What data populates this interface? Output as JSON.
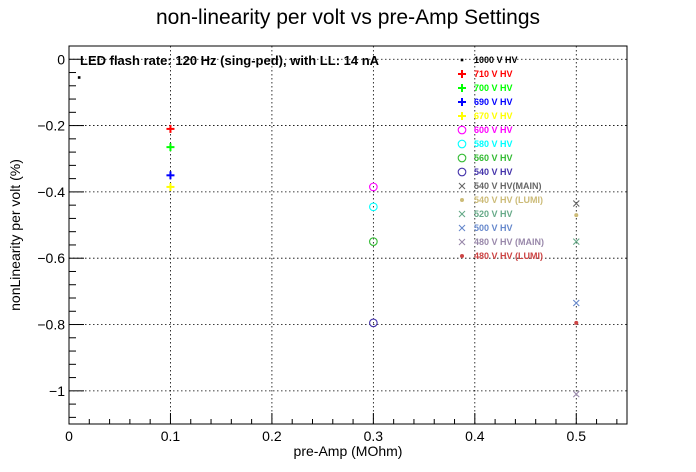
{
  "chart_data": {
    "type": "scatter",
    "title": "non-linearity per volt vs pre-Amp Settings",
    "xlabel": "pre-Amp (MOhm)",
    "ylabel": "nonLinearity per volt (%)",
    "xlim": [
      0,
      0.55
    ],
    "ylim": [
      -1.1,
      0.04
    ],
    "grid": true,
    "legend_position": "top-right",
    "annotation": "LED flash rate: 120 Hz  (sing-ped), with LL: 14 nA",
    "x_ticks": [
      {
        "value": 0,
        "label": "0"
      },
      {
        "value": 0.1,
        "label": "0.1"
      },
      {
        "value": 0.2,
        "label": "0.2"
      },
      {
        "value": 0.3,
        "label": "0.3"
      },
      {
        "value": 0.4,
        "label": "0.4"
      },
      {
        "value": 0.5,
        "label": "0.5"
      }
    ],
    "y_ticks": [
      {
        "value": 0,
        "label": "0"
      },
      {
        "value": -0.2,
        "label": "−0.2"
      },
      {
        "value": -0.4,
        "label": "−0.4"
      },
      {
        "value": -0.6,
        "label": "−0.6"
      },
      {
        "value": -0.8,
        "label": "−0.8"
      },
      {
        "value": -1,
        "label": "−1"
      }
    ],
    "series": [
      {
        "name": "1000 V HV",
        "color": "#000000",
        "marker": "dot",
        "points": [
          [
            0.01,
            -0.055
          ]
        ]
      },
      {
        "name": "710 V HV",
        "color": "#ff0000",
        "marker": "plus",
        "points": [
          [
            0.1,
            -0.21
          ]
        ]
      },
      {
        "name": "700 V HV",
        "color": "#00ff00",
        "marker": "plus",
        "points": [
          [
            0.1,
            -0.265
          ]
        ]
      },
      {
        "name": "690 V HV",
        "color": "#0000ff",
        "marker": "plus",
        "points": [
          [
            0.1,
            -0.35
          ]
        ]
      },
      {
        "name": "670 V HV",
        "color": "#ffff00",
        "marker": "plus",
        "points": [
          [
            0.1,
            -0.385
          ]
        ]
      },
      {
        "name": "600 V HV",
        "color": "#ff00ff",
        "marker": "circle",
        "points": [
          [
            0.3,
            -0.385
          ]
        ]
      },
      {
        "name": "580 V HV",
        "color": "#00ffff",
        "marker": "circle",
        "points": [
          [
            0.3,
            -0.445
          ]
        ]
      },
      {
        "name": "560 V HV",
        "color": "#33bb33",
        "marker": "circle",
        "points": [
          [
            0.3,
            -0.55
          ]
        ]
      },
      {
        "name": "540 V HV",
        "color": "#4433aa",
        "marker": "circle",
        "points": [
          [
            0.3,
            -0.795
          ]
        ]
      },
      {
        "name": "540 V HV(MAIN)",
        "color": "#666666",
        "marker": "cross",
        "points": [
          [
            0.5,
            -0.435
          ]
        ]
      },
      {
        "name": "540 V HV (LUMI)",
        "color": "#ccbb77",
        "marker": "star",
        "points": [
          [
            0.5,
            -0.47
          ]
        ]
      },
      {
        "name": "520 V HV",
        "color": "#66aa88",
        "marker": "cross",
        "points": [
          [
            0.5,
            -0.55
          ]
        ]
      },
      {
        "name": "500 V HV",
        "color": "#6688cc",
        "marker": "cross",
        "points": [
          [
            0.5,
            -0.735
          ]
        ]
      },
      {
        "name": "480 V HV (MAIN)",
        "color": "#9988aa",
        "marker": "cross",
        "points": [
          [
            0.5,
            -1.01
          ]
        ]
      },
      {
        "name": "480 V HV (LUMI)",
        "color": "#cc4444",
        "marker": "star",
        "points": [
          [
            0.5,
            -0.795
          ]
        ]
      }
    ]
  }
}
